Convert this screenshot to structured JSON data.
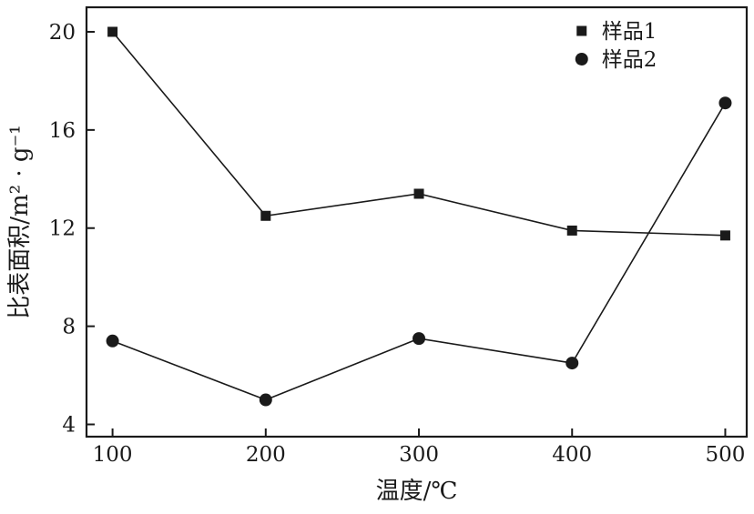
{
  "chart_data": {
    "type": "line",
    "title": "",
    "xlabel": "温度/℃",
    "ylabel": "比表面积/m² · g⁻¹",
    "x": [
      100,
      200,
      300,
      400,
      500
    ],
    "series": [
      {
        "name": "样品1",
        "marker": "square",
        "values": [
          20.0,
          12.5,
          13.4,
          11.9,
          11.7
        ]
      },
      {
        "name": "样品2",
        "marker": "circle",
        "values": [
          7.4,
          5.0,
          7.5,
          6.5,
          17.1
        ]
      }
    ],
    "xticks": [
      100,
      200,
      300,
      400,
      500
    ],
    "yticks": [
      4,
      8,
      12,
      16,
      20
    ],
    "xlim": [
      83,
      514
    ],
    "ylim": [
      3.5,
      21
    ],
    "grid": false,
    "legend_position": "top-right",
    "line_color": "#1a1a1a",
    "background": "#ffffff"
  }
}
